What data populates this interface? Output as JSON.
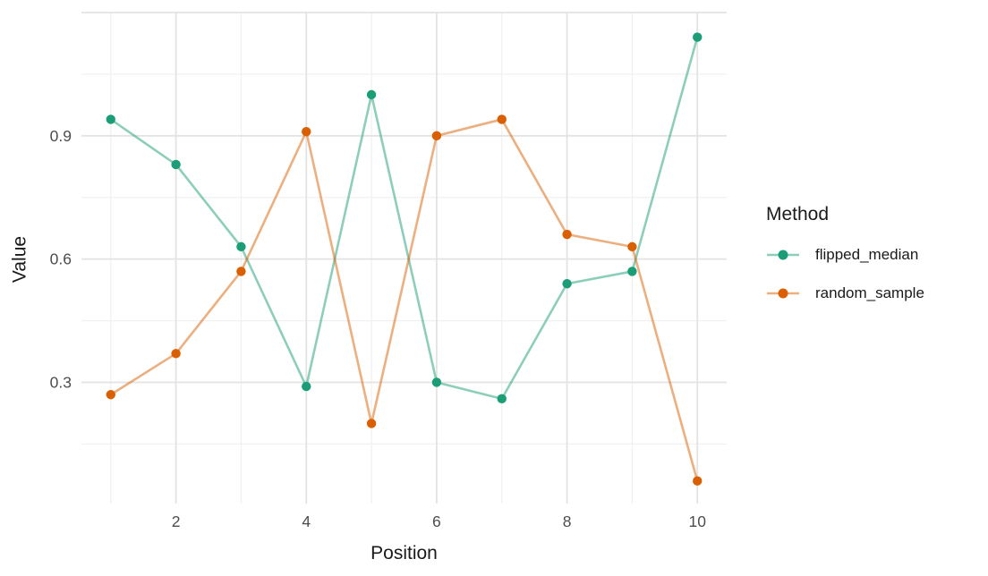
{
  "chart_data": {
    "type": "line",
    "title": "",
    "xlabel": "Position",
    "ylabel": "Value",
    "legend_title": "Method",
    "legend_position": "right",
    "grid": true,
    "x": [
      1,
      2,
      3,
      4,
      5,
      6,
      7,
      8,
      9,
      10
    ],
    "series": [
      {
        "name": "flipped_median",
        "color": "#1B9E77",
        "line_color_faded": "#8DCFBB",
        "values": [
          0.94,
          0.83,
          0.63,
          0.29,
          1.0,
          0.3,
          0.26,
          0.54,
          0.57,
          1.14
        ]
      },
      {
        "name": "random_sample",
        "color": "#D95F02",
        "line_color_faded": "#ECAF80",
        "values": [
          0.27,
          0.37,
          0.57,
          0.91,
          0.2,
          0.9,
          0.94,
          0.66,
          0.63,
          0.06
        ]
      }
    ],
    "xlim": [
      0.55,
      10.45
    ],
    "ylim": [
      0.005,
      1.2
    ],
    "x_ticks": [
      2,
      4,
      6,
      8,
      10
    ],
    "y_ticks": [
      0.3,
      0.6,
      0.9
    ],
    "x_tick_labels": [
      "2",
      "4",
      "6",
      "8",
      "10"
    ],
    "y_tick_labels": [
      "0.3",
      "0.6",
      "0.9"
    ],
    "x_minor_gridlines": [
      1,
      3,
      5,
      7,
      9
    ],
    "y_minor_gridlines": [
      0.15,
      0.45,
      0.75,
      1.05
    ],
    "x_major_gridlines": [
      2,
      4,
      6,
      8,
      10
    ],
    "y_major_gridlines": [
      0.3,
      0.6,
      0.9,
      1.2
    ]
  },
  "style": {
    "tick_label_color": "#4d4d4d",
    "major_grid_color": "#e3e3e3",
    "minor_grid_color": "#f1f1f1",
    "background": "#ffffff"
  }
}
